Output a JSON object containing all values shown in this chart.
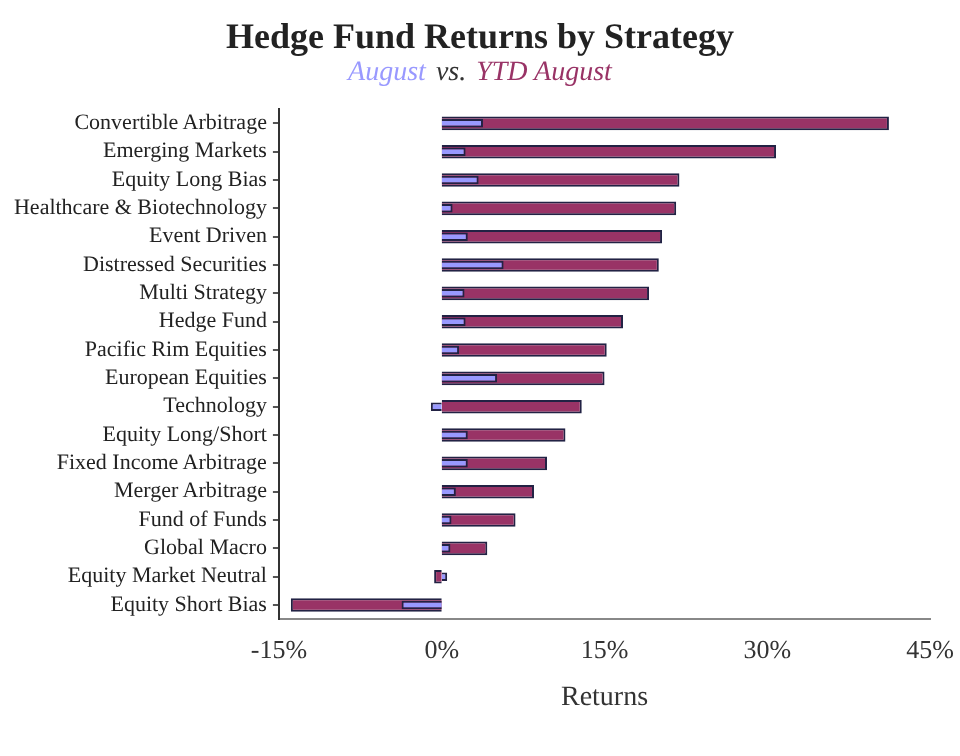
{
  "chart_data": {
    "type": "bar",
    "orientation": "horizontal",
    "title": "Hedge Fund Returns by Strategy",
    "xlabel": "Returns",
    "annotations": [
      "vs."
    ],
    "categories": [
      "Convertible Arbitrage",
      "Emerging Markets",
      "Equity Long Bias",
      "Healthcare & Biotechnology",
      "Event Driven",
      "Distressed Securities",
      "Multi Strategy",
      "Hedge Fund",
      "Pacific Rim Equities",
      "European Equities",
      "Technology",
      "Equity Long/Short",
      "Fixed Income Arbitrage",
      "Merger Arbitrage",
      "Fund of Funds",
      "Global Macro",
      "Equity Market Neutral",
      "Equity Short Bias"
    ],
    "series": [
      {
        "name": "August",
        "color": "#9999ff",
        "values": [
          3.8,
          2.2,
          3.4,
          1.0,
          2.4,
          5.7,
          2.1,
          2.2,
          1.6,
          5.1,
          -1.0,
          2.4,
          2.4,
          1.3,
          0.9,
          0.8,
          0.5,
          -3.7
        ]
      },
      {
        "name": "YTD August",
        "color": "#993366",
        "values": [
          41.2,
          30.8,
          21.9,
          21.6,
          20.3,
          20.0,
          19.1,
          16.7,
          15.2,
          15.0,
          12.9,
          11.4,
          9.7,
          8.5,
          6.8,
          4.2,
          -0.7,
          -13.9
        ]
      }
    ],
    "xlim": [
      -15,
      45
    ],
    "xticks": [
      {
        "value": -15,
        "label": "-15%"
      },
      {
        "value": 0,
        "label": "0%"
      },
      {
        "value": 15,
        "label": "15%"
      },
      {
        "value": 30,
        "label": "30%"
      },
      {
        "value": 45,
        "label": "45%"
      }
    ],
    "grid": false,
    "legend": "top"
  }
}
